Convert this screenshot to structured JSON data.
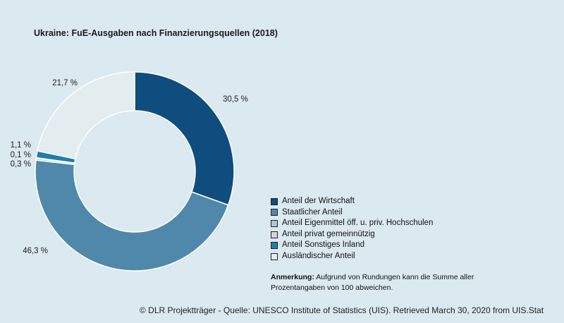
{
  "chart_data": {
    "type": "pie",
    "subtype": "donut",
    "title": "Ukraine: FuE-Ausgaben nach Finanzierungsquellen (2018)",
    "start_angle_deg": 0,
    "direction": "clockwise",
    "slices": [
      {
        "label": "Anteil der Wirtschaft",
        "value": 30.5,
        "value_label": "30,5 %",
        "color": "#0e4d7e"
      },
      {
        "label": "Staatlicher Anteil",
        "value": 46.3,
        "value_label": "46,3 %",
        "color": "#5088ab"
      },
      {
        "label": "Anteil Eigenmittel öff. u. priv. Hochschulen",
        "value": 0.3,
        "value_label": "0,3 %",
        "color": "#a9c8da"
      },
      {
        "label": "Anteil privat gemeinnützig",
        "value": 0.1,
        "value_label": "0,1 %",
        "color": "#d4d4d4"
      },
      {
        "label": "Anteil Sonstiges Inland",
        "value": 1.1,
        "value_label": "1,1 %",
        "color": "#1c7fad"
      },
      {
        "label": "Ausländischer Anteil",
        "value": 21.7,
        "value_label": "21,7 %",
        "color": "#e3ecef"
      }
    ],
    "legend_position": "right-bottom",
    "note_label": "Anmerkung:",
    "note_text": "Aufgrund von Rundungen kann die Summe aller Prozentangaben von 100 abweichen.",
    "source": "© DLR Projektträger - Quelle: UNESCO Institute of Statistics (UIS). Retrieved March 30, 2020 from UIS.Stat"
  }
}
